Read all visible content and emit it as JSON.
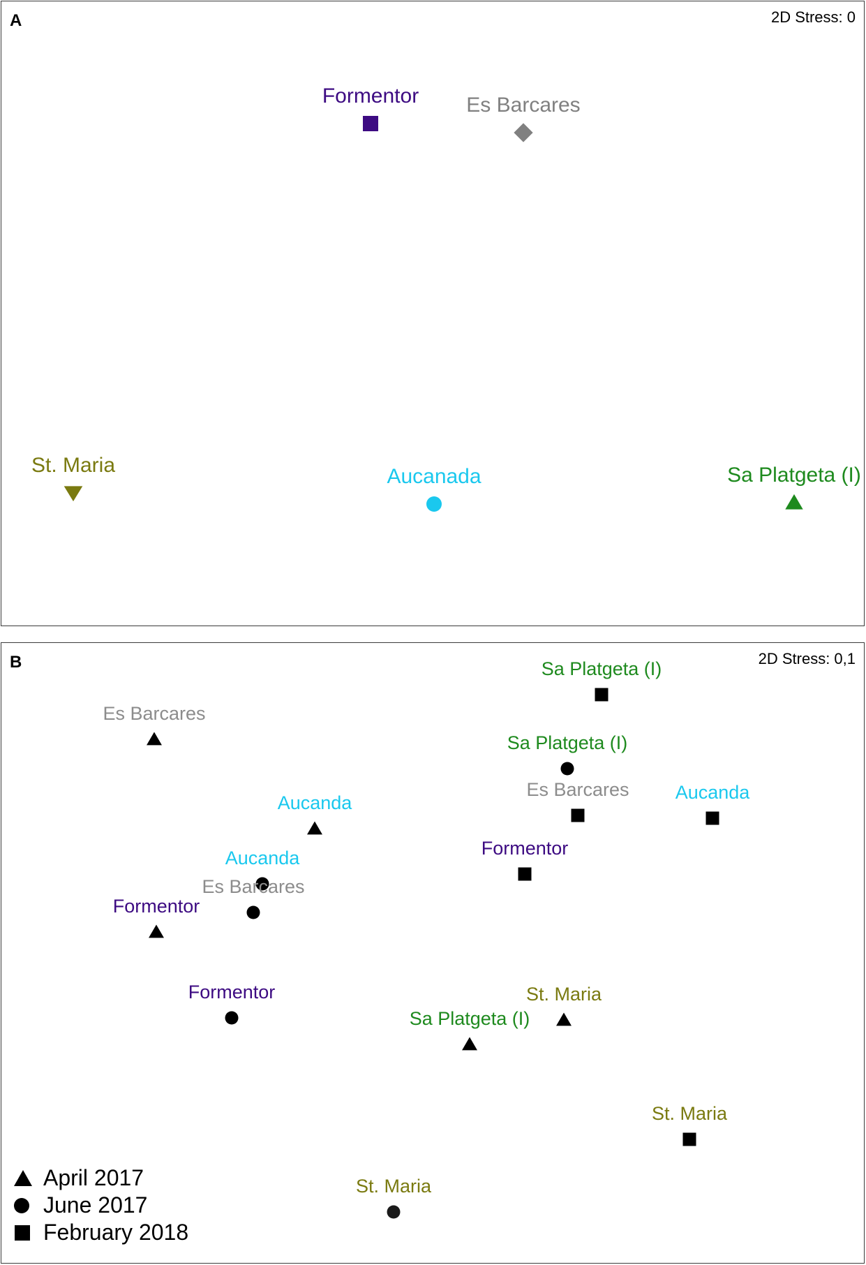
{
  "chart_data": [
    {
      "type": "scatter",
      "panel_label": "A",
      "stress_label": "2D Stress: 0",
      "xlim": [
        0,
        1238
      ],
      "ylim": [
        896,
        0
      ],
      "points": [
        {
          "label": "Formentor",
          "x": 529,
          "y": 175,
          "marker": "square",
          "color": "#3d0b82"
        },
        {
          "label": "Es Barcares",
          "x": 748,
          "y": 188,
          "marker": "diamond",
          "color": "#808080"
        },
        {
          "label": "St. Maria",
          "x": 103,
          "y": 704,
          "marker": "triangle-down",
          "color": "#7a7a10"
        },
        {
          "label": "Aucanada",
          "x": 620,
          "y": 720,
          "marker": "circle",
          "color": "#1ac8ee"
        },
        {
          "label": "Sa Platgeta (I)",
          "x": 1136,
          "y": 718,
          "marker": "triangle-up",
          "color": "#1e8a1e"
        }
      ]
    },
    {
      "type": "scatter",
      "panel_label": "B",
      "stress_label": "2D Stress: 0,1",
      "xlim": [
        0,
        1238
      ],
      "ylim": [
        890,
        0
      ],
      "legend": [
        {
          "label": "April 2017",
          "marker": "triangle-up"
        },
        {
          "label": "June  2017",
          "marker": "circle"
        },
        {
          "label": "February 2018",
          "marker": "square"
        }
      ],
      "points": [
        {
          "label": "Sa Platgeta (I)",
          "x": 860,
          "y": 74,
          "marker": "square",
          "color": "#1e8a1e"
        },
        {
          "label": "Es Barcares",
          "x": 219,
          "y": 138,
          "marker": "triangle-up",
          "color": "#8c8c8c"
        },
        {
          "label": "Sa Platgeta (I)",
          "x": 811,
          "y": 180,
          "marker": "circle",
          "color": "#1e8a1e"
        },
        {
          "label": "Es Barcares",
          "x": 826,
          "y": 247,
          "marker": "square",
          "color": "#8c8c8c"
        },
        {
          "label": "Aucanda",
          "x": 1019,
          "y": 251,
          "marker": "square",
          "color": "#1ac8ee"
        },
        {
          "label": "Aucanda",
          "x": 449,
          "y": 266,
          "marker": "triangle-up",
          "color": "#1ac8ee"
        },
        {
          "label": "Formentor",
          "x": 750,
          "y": 331,
          "marker": "square",
          "color": "#3d0b82"
        },
        {
          "label": "Aucanda",
          "x": 374,
          "y": 345,
          "marker": "circle",
          "color": "#1ac8ee"
        },
        {
          "label": "Es Barcares",
          "x": 361,
          "y": 386,
          "marker": "circle",
          "color": "#8c8c8c"
        },
        {
          "label": "Formentor",
          "x": 222,
          "y": 414,
          "marker": "triangle-up",
          "color": "#3d0b82"
        },
        {
          "label": "Formentor",
          "x": 330,
          "y": 537,
          "marker": "circle",
          "color": "#3d0b82"
        },
        {
          "label": "St. Maria",
          "x": 806,
          "y": 540,
          "marker": "triangle-up",
          "color": "#7a7a10"
        },
        {
          "label": "Sa Platgeta (I)",
          "x": 671,
          "y": 575,
          "marker": "triangle-up",
          "color": "#1e8a1e"
        },
        {
          "label": "St. Maria",
          "x": 986,
          "y": 711,
          "marker": "square",
          "color": "#7a7a10"
        },
        {
          "label": "St. Maria",
          "x": 562,
          "y": 815,
          "marker": "circle",
          "color": "#7a7a10"
        }
      ]
    }
  ]
}
